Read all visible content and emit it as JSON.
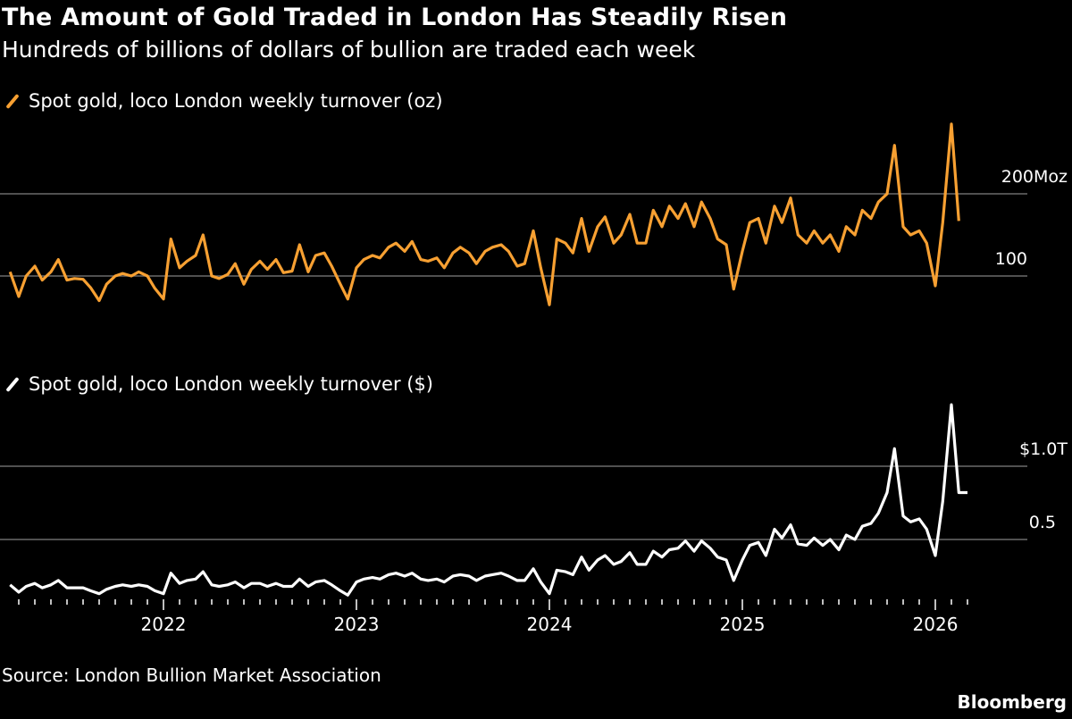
{
  "title": "The Amount of Gold Traded in London Has Steadily Risen",
  "subtitle": "Hundreds of billions of dollars of bullion are traded each week",
  "source": "Source: London Bullion Market Association",
  "brand": "Bloomberg",
  "chart_data": [
    {
      "type": "line",
      "legend": "Spot gold, loco London weekly turnover (oz)",
      "color": "#f7a032",
      "ylim": [
        60,
        290
      ],
      "yticks": [
        100,
        200
      ],
      "ytick_labels": [
        "100",
        "200Moz"
      ],
      "grid": true,
      "series_key": "oz"
    },
    {
      "type": "line",
      "legend": "Spot gold, loco London weekly turnover ($)",
      "color": "#ffffff",
      "ylim": [
        0,
        1.45
      ],
      "yticks": [
        0.5,
        1.0
      ],
      "ytick_labels": [
        "0.5",
        "$1.0T"
      ],
      "grid": true,
      "series_key": "usd",
      "xticks": [
        "2022",
        "2023",
        "2024",
        "2025",
        "2026"
      ]
    }
  ],
  "dates": [
    "2021-03-15",
    "2021-04-01",
    "2021-04-15",
    "2021-05-01",
    "2021-05-15",
    "2021-06-01",
    "2021-06-15",
    "2021-07-01",
    "2021-07-15",
    "2021-08-01",
    "2021-08-15",
    "2021-09-01",
    "2021-09-15",
    "2021-10-01",
    "2021-10-15",
    "2021-11-01",
    "2021-11-15",
    "2021-12-01",
    "2021-12-15",
    "2022-01-01",
    "2022-01-15",
    "2022-02-01",
    "2022-02-15",
    "2022-03-01",
    "2022-03-15",
    "2022-04-01",
    "2022-04-15",
    "2022-05-01",
    "2022-05-15",
    "2022-06-01",
    "2022-06-15",
    "2022-07-01",
    "2022-07-15",
    "2022-08-01",
    "2022-08-15",
    "2022-09-01",
    "2022-09-15",
    "2022-10-01",
    "2022-10-15",
    "2022-11-01",
    "2022-11-15",
    "2022-12-01",
    "2022-12-15",
    "2023-01-01",
    "2023-01-15",
    "2023-02-01",
    "2023-02-15",
    "2023-03-01",
    "2023-03-15",
    "2023-04-01",
    "2023-04-15",
    "2023-05-01",
    "2023-05-15",
    "2023-06-01",
    "2023-06-15",
    "2023-07-01",
    "2023-07-15",
    "2023-08-01",
    "2023-08-15",
    "2023-09-01",
    "2023-09-15",
    "2023-10-01",
    "2023-10-15",
    "2023-11-01",
    "2023-11-15",
    "2023-12-01",
    "2023-12-15",
    "2024-01-01",
    "2024-01-15",
    "2024-02-01",
    "2024-02-15",
    "2024-03-01",
    "2024-03-15",
    "2024-04-01",
    "2024-04-15",
    "2024-05-01",
    "2024-05-15",
    "2024-06-01",
    "2024-06-15",
    "2024-07-01",
    "2024-07-15",
    "2024-08-01",
    "2024-08-15",
    "2024-09-01",
    "2024-09-15",
    "2024-10-01",
    "2024-10-15",
    "2024-11-01",
    "2024-11-15",
    "2024-12-01",
    "2024-12-15",
    "2025-01-01",
    "2025-01-15",
    "2025-02-01",
    "2025-02-15",
    "2025-03-01",
    "2025-03-15",
    "2025-04-01",
    "2025-04-15",
    "2025-05-01",
    "2025-05-15",
    "2025-06-01",
    "2025-06-15",
    "2025-07-01",
    "2025-07-15",
    "2025-08-01",
    "2025-08-15",
    "2025-09-01",
    "2025-09-15",
    "2025-10-01",
    "2025-10-15",
    "2025-11-01",
    "2025-11-15",
    "2025-12-01",
    "2025-12-15",
    "2026-01-01",
    "2026-01-15",
    "2026-02-01",
    "2026-02-15",
    "2026-03-01"
  ],
  "oz": [
    105,
    75,
    100,
    112,
    95,
    105,
    120,
    95,
    97,
    96,
    86,
    70,
    90,
    100,
    103,
    100,
    105,
    100,
    85,
    72,
    145,
    110,
    118,
    125,
    150,
    100,
    97,
    102,
    115,
    90,
    108,
    118,
    108,
    120,
    104,
    106,
    138,
    105,
    125,
    128,
    112,
    90,
    72,
    110,
    120,
    125,
    122,
    135,
    140,
    130,
    142,
    120,
    118,
    122,
    110,
    128,
    135,
    128,
    115,
    130,
    135,
    138,
    130,
    112,
    115,
    155,
    110,
    65,
    145,
    140,
    128,
    170,
    130,
    160,
    172,
    140,
    150,
    175,
    140,
    140,
    180,
    160,
    185,
    170,
    188,
    160,
    190,
    170,
    145,
    138,
    84,
    130,
    165,
    170,
    140,
    185,
    165,
    195,
    150,
    140,
    155,
    140,
    150,
    130,
    160,
    150,
    180,
    170,
    190,
    200,
    259,
    160,
    150,
    155,
    140,
    88,
    165,
    285,
    167,
    null
  ],
  "usd": [
    0.19,
    0.14,
    0.18,
    0.2,
    0.17,
    0.19,
    0.22,
    0.17,
    0.17,
    0.17,
    0.15,
    0.13,
    0.16,
    0.18,
    0.19,
    0.18,
    0.19,
    0.18,
    0.15,
    0.13,
    0.27,
    0.2,
    0.22,
    0.23,
    0.28,
    0.19,
    0.18,
    0.19,
    0.21,
    0.17,
    0.2,
    0.2,
    0.18,
    0.2,
    0.18,
    0.18,
    0.23,
    0.18,
    0.21,
    0.22,
    0.19,
    0.15,
    0.12,
    0.21,
    0.23,
    0.24,
    0.23,
    0.26,
    0.27,
    0.25,
    0.27,
    0.23,
    0.22,
    0.23,
    0.21,
    0.25,
    0.26,
    0.25,
    0.22,
    0.25,
    0.26,
    0.27,
    0.25,
    0.22,
    0.22,
    0.3,
    0.21,
    0.13,
    0.29,
    0.28,
    0.26,
    0.38,
    0.29,
    0.36,
    0.39,
    0.33,
    0.35,
    0.41,
    0.33,
    0.33,
    0.42,
    0.38,
    0.43,
    0.44,
    0.49,
    0.42,
    0.49,
    0.44,
    0.38,
    0.36,
    0.22,
    0.36,
    0.46,
    0.48,
    0.39,
    0.57,
    0.51,
    0.6,
    0.47,
    0.46,
    0.51,
    0.46,
    0.5,
    0.43,
    0.53,
    0.5,
    0.59,
    0.61,
    0.68,
    0.82,
    1.12,
    0.66,
    0.62,
    0.64,
    0.57,
    0.39,
    0.76,
    1.42,
    0.82,
    0.82
  ]
}
